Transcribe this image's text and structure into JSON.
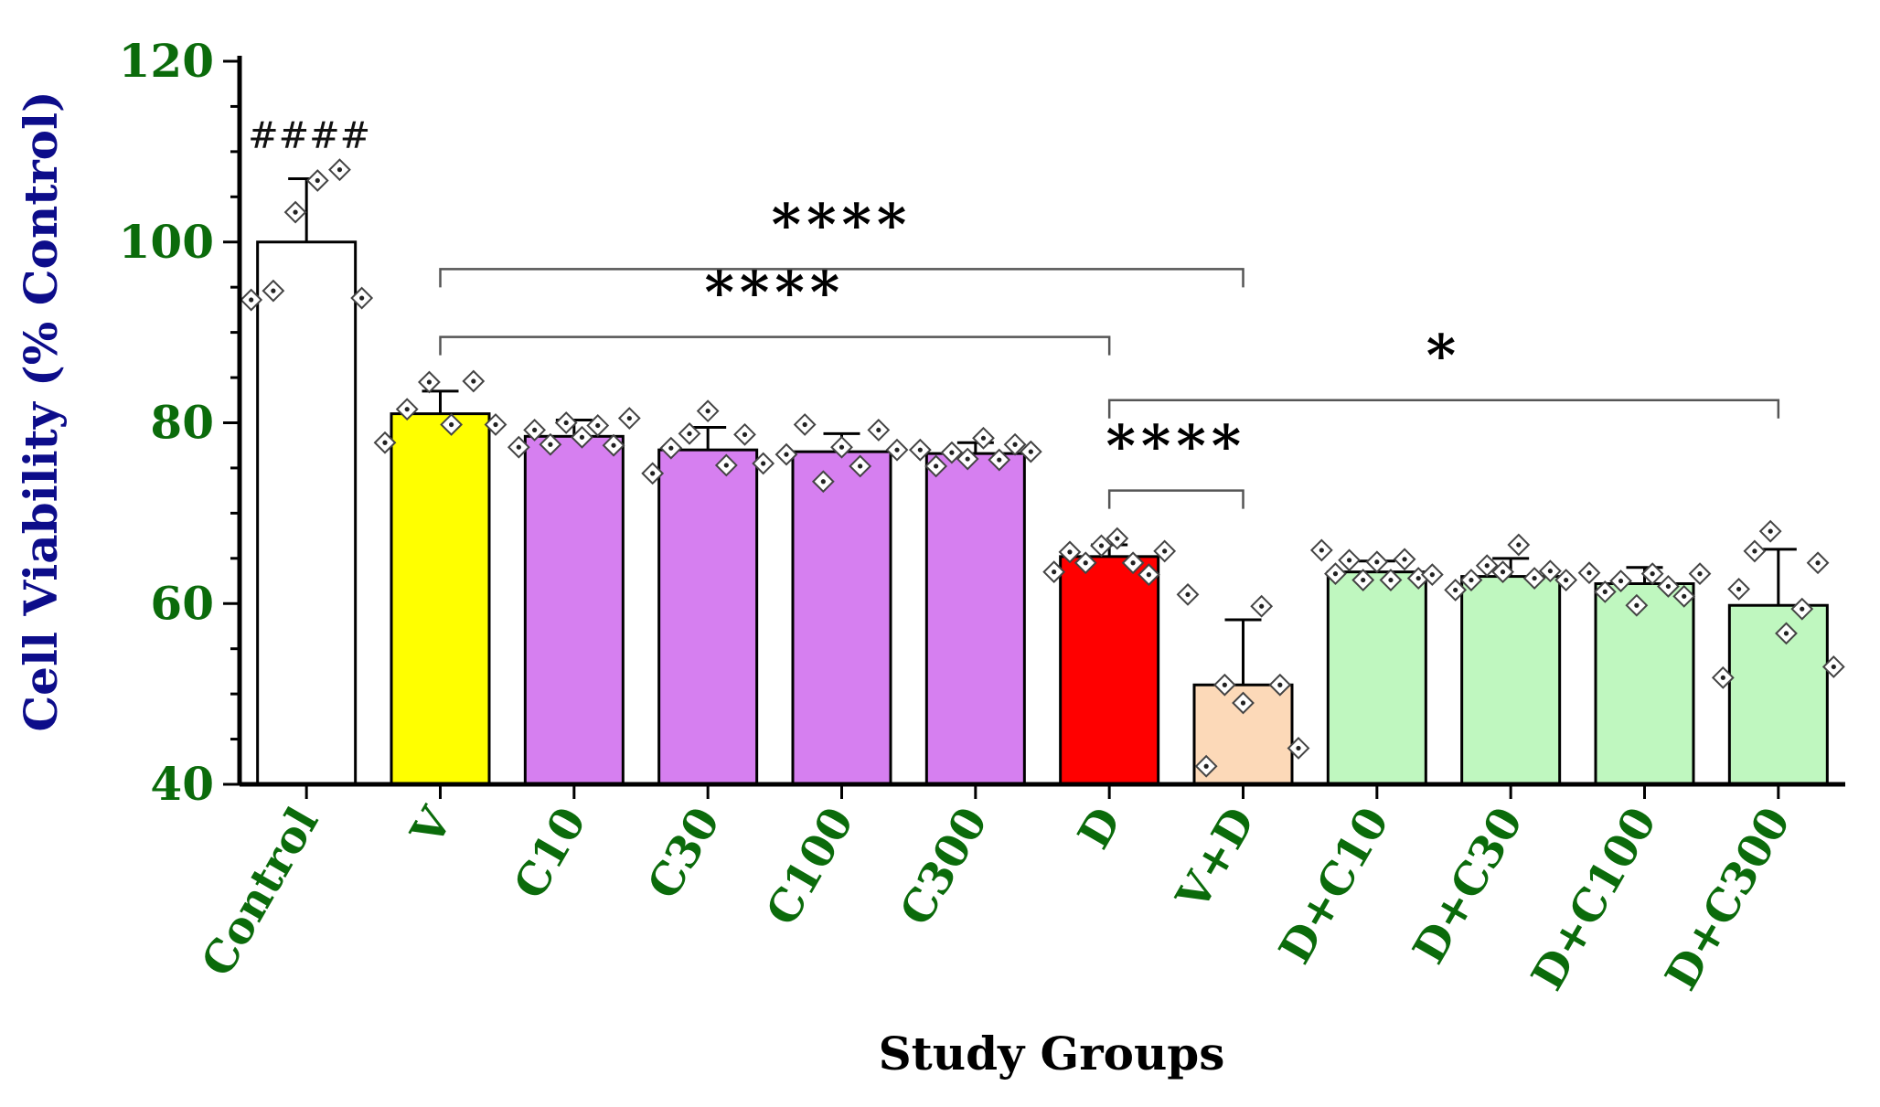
{
  "chart_data": {
    "type": "bar",
    "xlabel": "Study Groups",
    "ylabel": "Cell Viability (% Control)",
    "ylim": [
      40,
      120
    ],
    "yticks": [
      40,
      60,
      80,
      100,
      120
    ],
    "grid": false,
    "legend": "none",
    "categories": [
      "Control",
      "V",
      "C10",
      "C30",
      "C100",
      "C300",
      "D",
      "V+D",
      "D+C10",
      "D+C30",
      "D+C100",
      "D+C300"
    ],
    "values": [
      100,
      81,
      78.5,
      77,
      76.8,
      76.6,
      65.2,
      51,
      63.5,
      63,
      62.2,
      59.8
    ],
    "errors": [
      7,
      2.5,
      1.8,
      2.5,
      2.0,
      1.2,
      1.3,
      7.2,
      1.2,
      2.0,
      1.8,
      6.2
    ],
    "bar_colors": [
      "#ffffff",
      "#ffff00",
      "#d67ff0",
      "#d67ff0",
      "#d67ff0",
      "#d67ff0",
      "#ff0000",
      "#fcd9b8",
      "#bff7bf",
      "#bff7bf",
      "#bff7bf",
      "#bff7bf"
    ],
    "points": [
      [
        93.6,
        94.6,
        103.3,
        106.8,
        108,
        93.8
      ],
      [
        77.8,
        81.5,
        84.5,
        79.8,
        84.6,
        79.8
      ],
      [
        77.3,
        79.2,
        77.6,
        80,
        78.4,
        79.7,
        77.5,
        80.5
      ],
      [
        74.4,
        77.2,
        78.8,
        81.3,
        75.3,
        78.7,
        75.5
      ],
      [
        76.5,
        79.8,
        73.5,
        77.3,
        75.2,
        79.2,
        77
      ],
      [
        77,
        75.2,
        76.7,
        76,
        78.3,
        75.9,
        77.6,
        76.8
      ],
      [
        63.5,
        65.7,
        64.5,
        66.4,
        67.2,
        64.5,
        63.2,
        65.8
      ],
      [
        61,
        42,
        51,
        49,
        59.7,
        51,
        44
      ],
      [
        65.9,
        63.3,
        64.8,
        62.6,
        64.6,
        62.6,
        64.9,
        62.8,
        63.2
      ],
      [
        61.5,
        62.6,
        64.2,
        63.5,
        66.5,
        62.8,
        63.6,
        62.6
      ],
      [
        63.4,
        61.3,
        62.5,
        59.8,
        63.3,
        61.9,
        60.8,
        63.3
      ],
      [
        51.8,
        61.6,
        65.8,
        68,
        56.7,
        59.4,
        64.5,
        53
      ]
    ],
    "annotations": {
      "control_label": "####",
      "significance": [
        {
          "from": "V",
          "to": "V+D",
          "label": "****"
        },
        {
          "from": "V",
          "to": "D",
          "label": "****"
        },
        {
          "from": "D",
          "to": "D+C300",
          "label": "*"
        },
        {
          "from": "D",
          "to": "V+D",
          "label": "****"
        }
      ]
    },
    "colors": {
      "tick_text": "#0b6b0b",
      "ylabel_text": "#0d0d8a",
      "xlabel_text": "#000000",
      "axis": "#000000"
    }
  }
}
